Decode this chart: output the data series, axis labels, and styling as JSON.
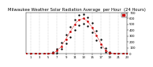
{
  "title": "Milwaukee Weather Solar Radiation Average  per Hour  (24 Hours)",
  "hours": [
    0,
    1,
    2,
    3,
    4,
    5,
    6,
    7,
    8,
    9,
    10,
    11,
    12,
    13,
    14,
    15,
    16,
    17,
    18,
    19,
    20,
    21,
    22,
    23
  ],
  "avg_values": [
    0,
    0,
    0,
    0,
    0,
    2,
    10,
    50,
    130,
    250,
    380,
    500,
    580,
    600,
    550,
    440,
    310,
    170,
    60,
    15,
    2,
    0,
    0,
    0
  ],
  "min_values": [
    0,
    0,
    0,
    0,
    0,
    0,
    2,
    20,
    80,
    180,
    290,
    400,
    480,
    510,
    470,
    360,
    230,
    110,
    30,
    5,
    0,
    0,
    0,
    0
  ],
  "max_values": [
    0,
    0,
    0,
    0,
    0,
    5,
    25,
    90,
    190,
    320,
    460,
    580,
    660,
    670,
    620,
    520,
    390,
    240,
    100,
    35,
    8,
    0,
    0,
    0
  ],
  "line_color": "#cc0000",
  "dot_color": "#000000",
  "legend_color": "#cc0000",
  "bg_color": "#ffffff",
  "grid_color": "#999999",
  "ylim": [
    0,
    700
  ],
  "yticks": [
    0,
    100,
    200,
    300,
    400,
    500,
    600,
    700
  ],
  "xticks": [
    1,
    3,
    5,
    7,
    9,
    11,
    13,
    15,
    17,
    19,
    21,
    23
  ],
  "grid_x": [
    1,
    3,
    5,
    7,
    9,
    11,
    13,
    15,
    17,
    19,
    21,
    23
  ],
  "title_fontsize": 3.8,
  "tick_fontsize": 2.8
}
